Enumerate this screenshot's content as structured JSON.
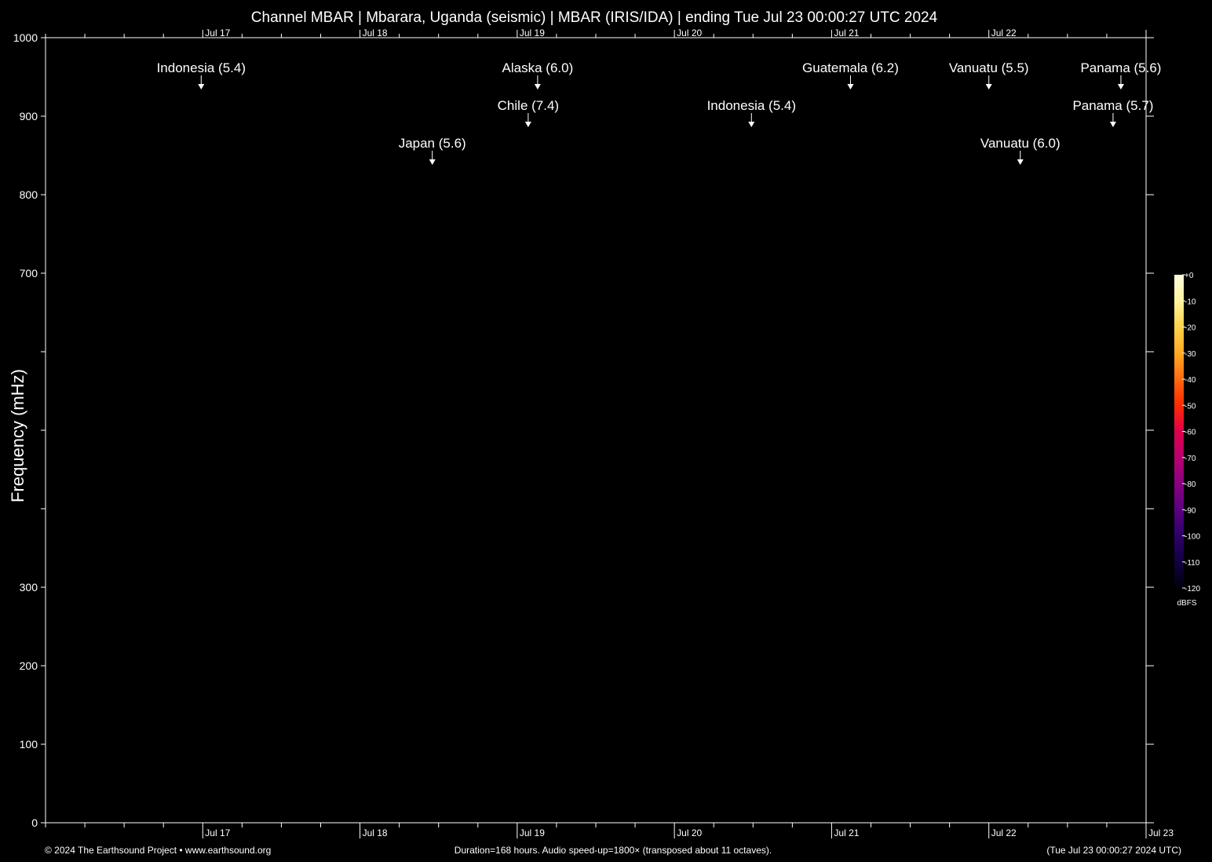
{
  "chart_data": {
    "type": "heatmap",
    "title": "Channel MBAR | Mbarara, Uganda (seismic) | MBAR (IRIS/IDA) | ending Tue Jul 23 00:00:27 UTC 2024",
    "ylabel": "Frequency (mHz)",
    "ylim": [
      0,
      1000
    ],
    "y_ticks": [
      0,
      100,
      200,
      300,
      400,
      500,
      600,
      700,
      800,
      900,
      1000
    ],
    "y_tick_labels": [
      "0",
      "100",
      "200",
      "300",
      "",
      "",
      "",
      "700",
      "800",
      "900",
      "1000"
    ],
    "x_range_days": [
      16.0,
      23.0
    ],
    "x_day_labels": [
      {
        "label": "Jul 17",
        "day": 17
      },
      {
        "label": "Jul 18",
        "day": 18
      },
      {
        "label": "Jul 19",
        "day": 19
      },
      {
        "label": "Jul 20",
        "day": 20
      },
      {
        "label": "Jul 21",
        "day": 21
      },
      {
        "label": "Jul 22",
        "day": 22
      },
      {
        "label": "Jul 23",
        "day": 23
      }
    ],
    "events": [
      {
        "label": "Indonesia (5.4)",
        "day": 16.99,
        "level": 0
      },
      {
        "label": "Alaska (6.0)",
        "day": 19.13,
        "level": 0
      },
      {
        "label": "Guatemala (6.2)",
        "day": 21.12,
        "level": 0
      },
      {
        "label": "Vanuatu (5.5)",
        "day": 22.0,
        "level": 0
      },
      {
        "label": "Panama (5.6)",
        "day": 22.84,
        "level": 0
      },
      {
        "label": "Chile (7.4)",
        "day": 19.07,
        "level": 1
      },
      {
        "label": "Indonesia (5.4)",
        "day": 20.49,
        "level": 1
      },
      {
        "label": "Panama (5.7)",
        "day": 22.79,
        "level": 1
      },
      {
        "label": "Japan (5.6)",
        "day": 18.46,
        "level": 2
      },
      {
        "label": "Vanuatu (6.0)",
        "day": 22.2,
        "level": 2
      }
    ],
    "colorbar": {
      "ticks": [
        "+0",
        "-10",
        "-20",
        "-30",
        "-40",
        "-50",
        "-60",
        "-70",
        "-80",
        "-90",
        "-100",
        "-110",
        "-120"
      ],
      "unit": "dBFS",
      "colors": [
        "#fffbe0",
        "#fff3a0",
        "#ffd24a",
        "#ffaa22",
        "#ff6a10",
        "#ff2a00",
        "#e0004a",
        "#b8006e",
        "#8a0080",
        "#5a0080",
        "#2e006a",
        "#120040",
        "#000010"
      ]
    },
    "grid": false
  },
  "footer": {
    "left": "© 2024 The Earthsound Project • www.earthsound.org",
    "center": "Duration=168 hours. Audio speed-up=1800× (transposed about 11 octaves).",
    "right": "(Tue Jul 23 00:00:27 2024 UTC)"
  }
}
